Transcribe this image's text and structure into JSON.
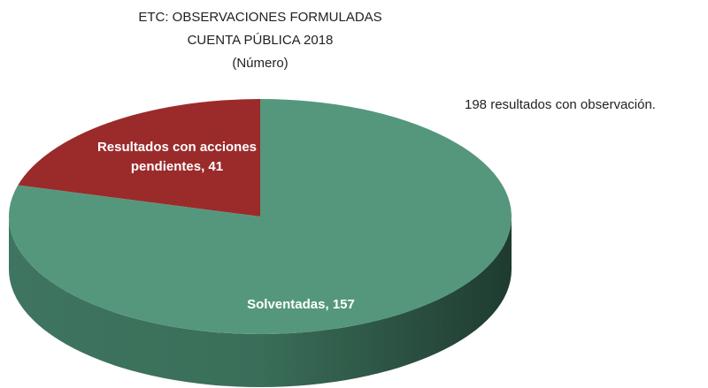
{
  "chart_data": {
    "type": "pie",
    "title": [
      "ETC: OBSERVACIONES FORMULADAS",
      "CUENTA PÚBLICA 2018"
    ],
    "subtitle": "(Número)",
    "annotation": "198 resultados con observación.",
    "categories": [
      "Resultados con acciones pendientes",
      "Solventadas"
    ],
    "values": [
      41,
      157
    ],
    "value_labels": [
      "Resultados con acciones pendientes, 41",
      "Solventadas, 157"
    ],
    "colors": [
      "#9b2b2b",
      "#55977d"
    ]
  }
}
